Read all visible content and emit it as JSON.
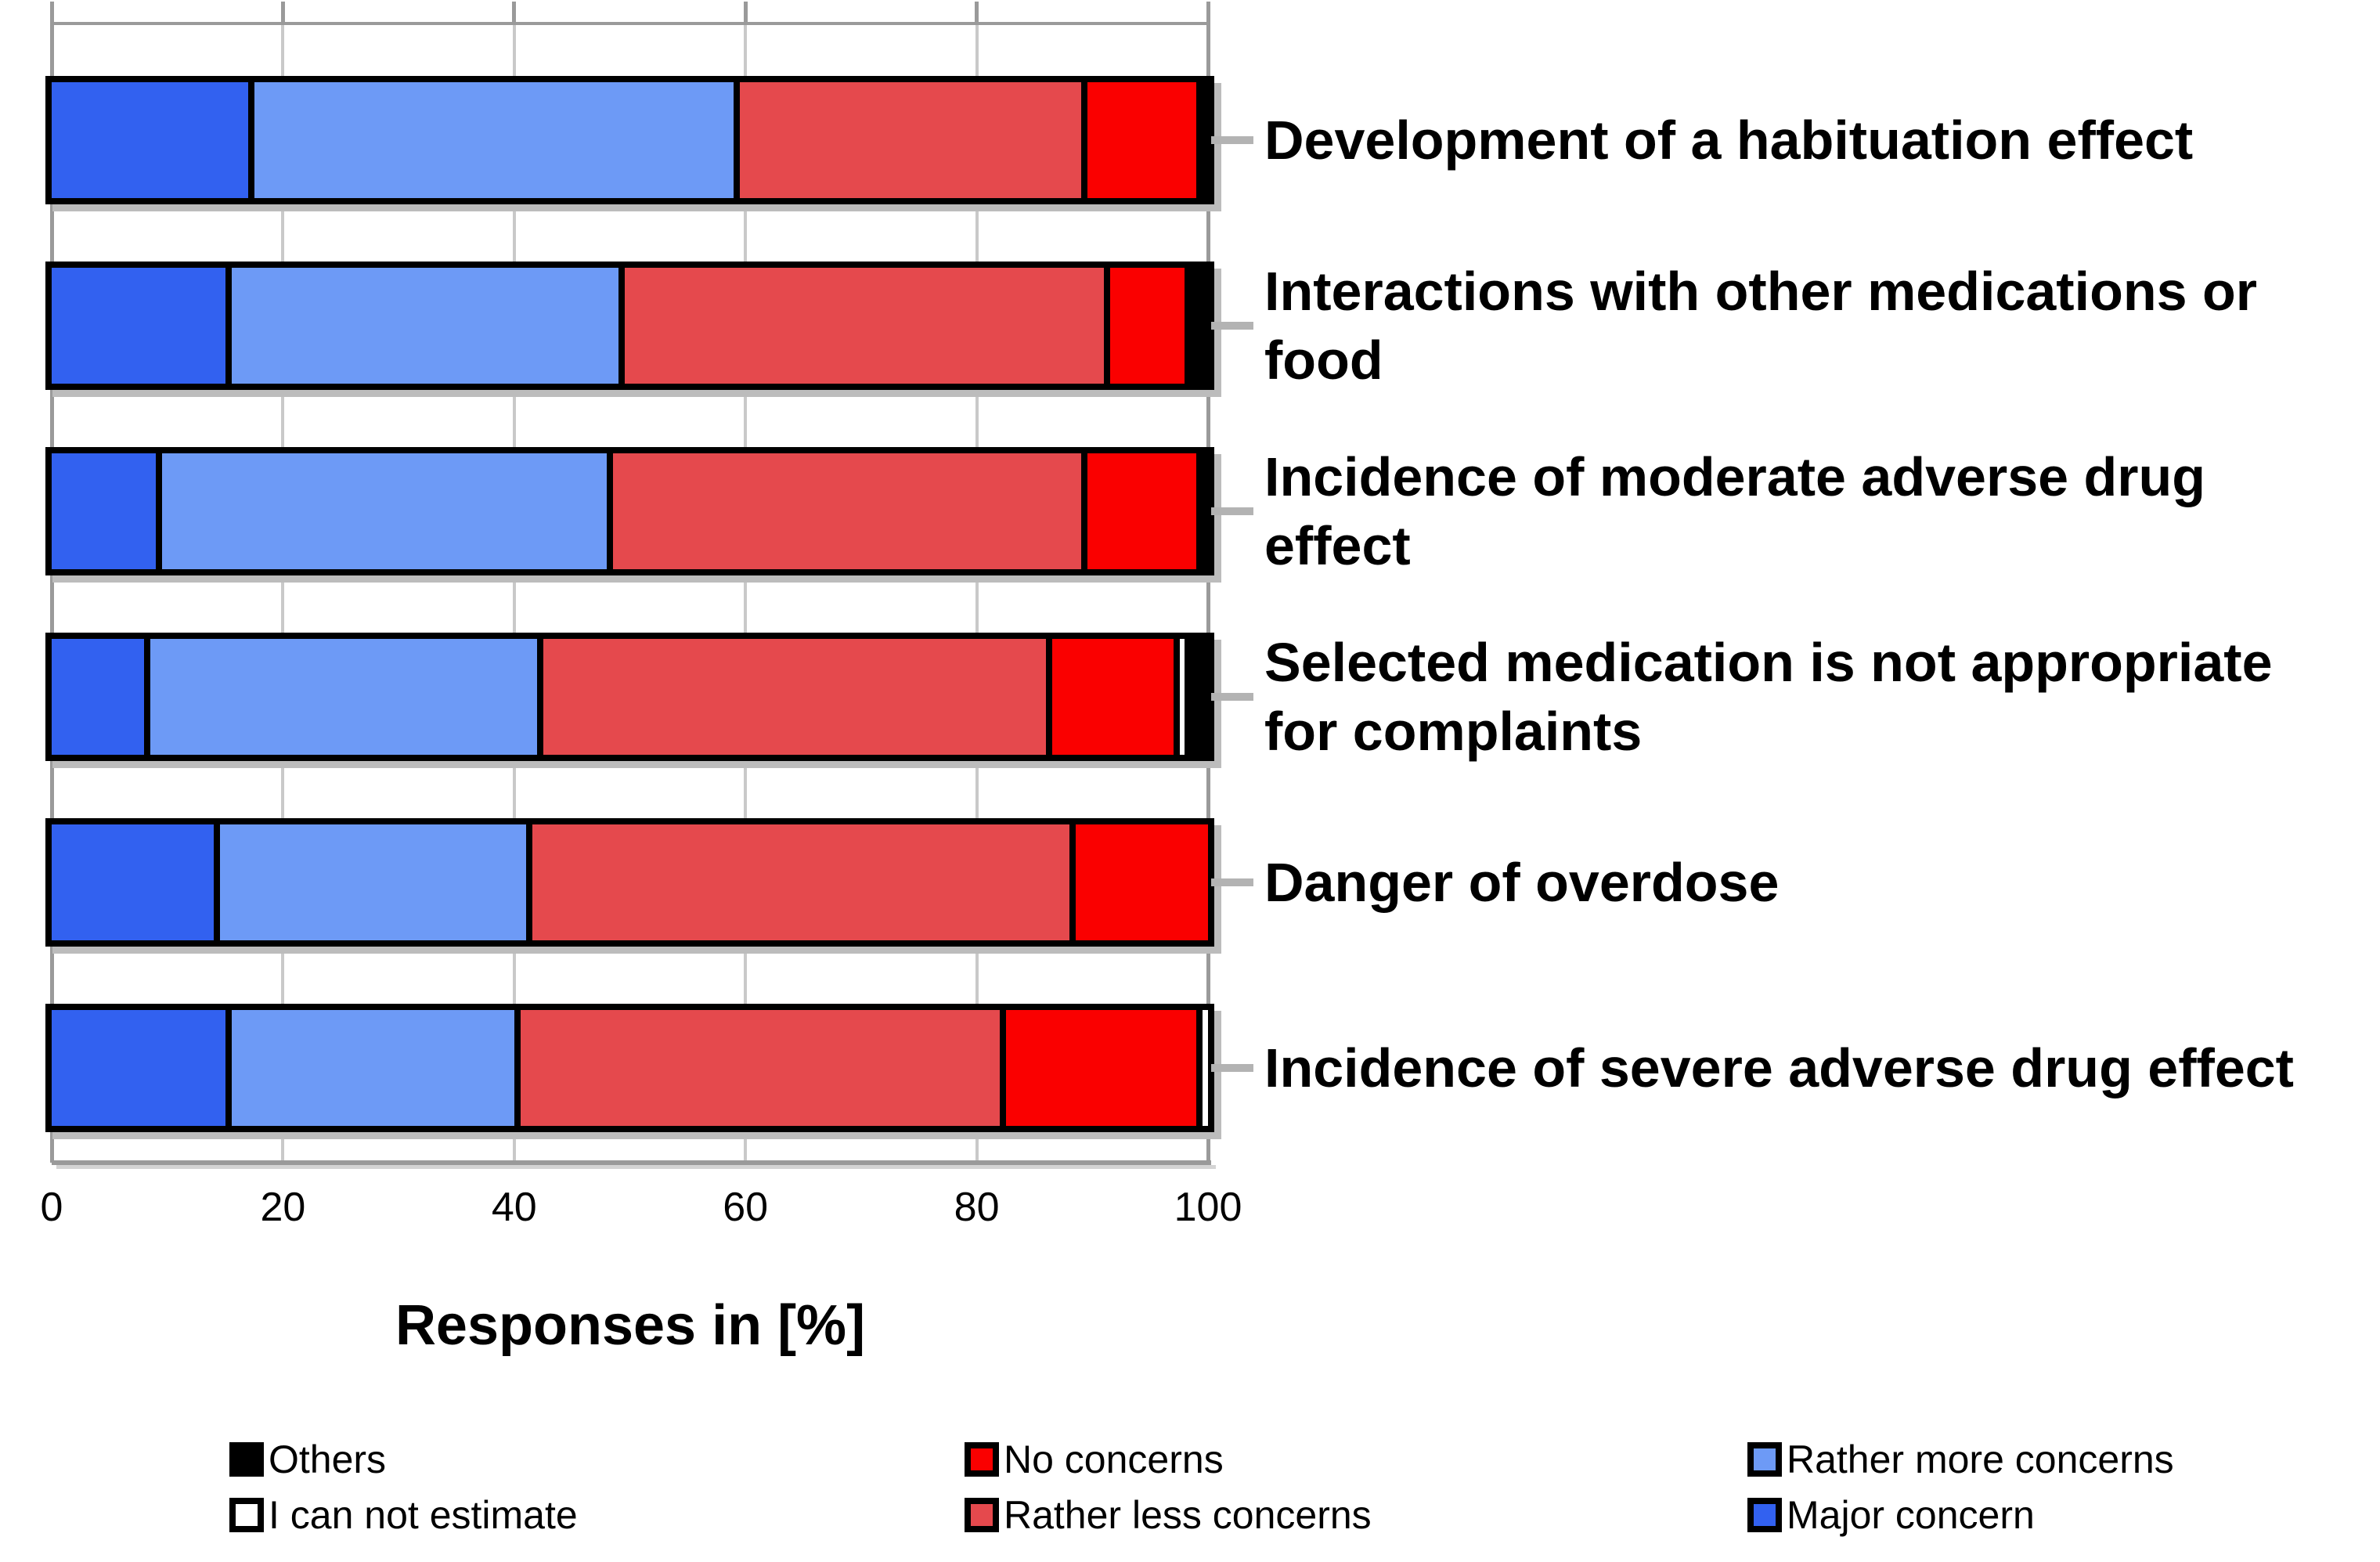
{
  "chart_data": {
    "type": "bar",
    "orientation": "horizontal-stacked",
    "title": "",
    "xlabel": "Responses in [%]",
    "ylabel": "",
    "xlim": [
      0,
      100
    ],
    "x_ticks": [
      "0",
      "20",
      "40",
      "60",
      "80",
      "100"
    ],
    "grid": true,
    "legend_position": "bottom",
    "categories": [
      "Development of a habituation effect",
      "Interactions with other medications or food",
      "Incidence of moderate adverse drug effect",
      "Selected medication is not appropriate for complaints",
      "Danger of overdose",
      "Incidence of severe adverse drug effect"
    ],
    "series": [
      {
        "name": "Major concern",
        "color": "#3261F0",
        "values": [
          17,
          15,
          9,
          8,
          14,
          15
        ]
      },
      {
        "name": "Rather more concerns",
        "color": "#6D9AF6",
        "values": [
          42,
          34,
          39,
          34,
          27,
          25
        ]
      },
      {
        "name": "Rather less concerns",
        "color": "#E5494D",
        "values": [
          30,
          42,
          41,
          44,
          47,
          42
        ]
      },
      {
        "name": "No concerns",
        "color": "#FA0000",
        "values": [
          10,
          7,
          10,
          11,
          12,
          17
        ]
      },
      {
        "name": "I can not estimate",
        "color": "#FFFFFF",
        "values": [
          0,
          0,
          0,
          1,
          0,
          1
        ]
      },
      {
        "name": "Others",
        "color": "#000000",
        "values": [
          1,
          2,
          1,
          2,
          0,
          0
        ]
      }
    ],
    "legend_columns": [
      [
        "Others",
        "I can not estimate"
      ],
      [
        "No concerns",
        "Rather less concerns"
      ],
      [
        "Rather more concerns",
        "Major concern"
      ]
    ]
  }
}
